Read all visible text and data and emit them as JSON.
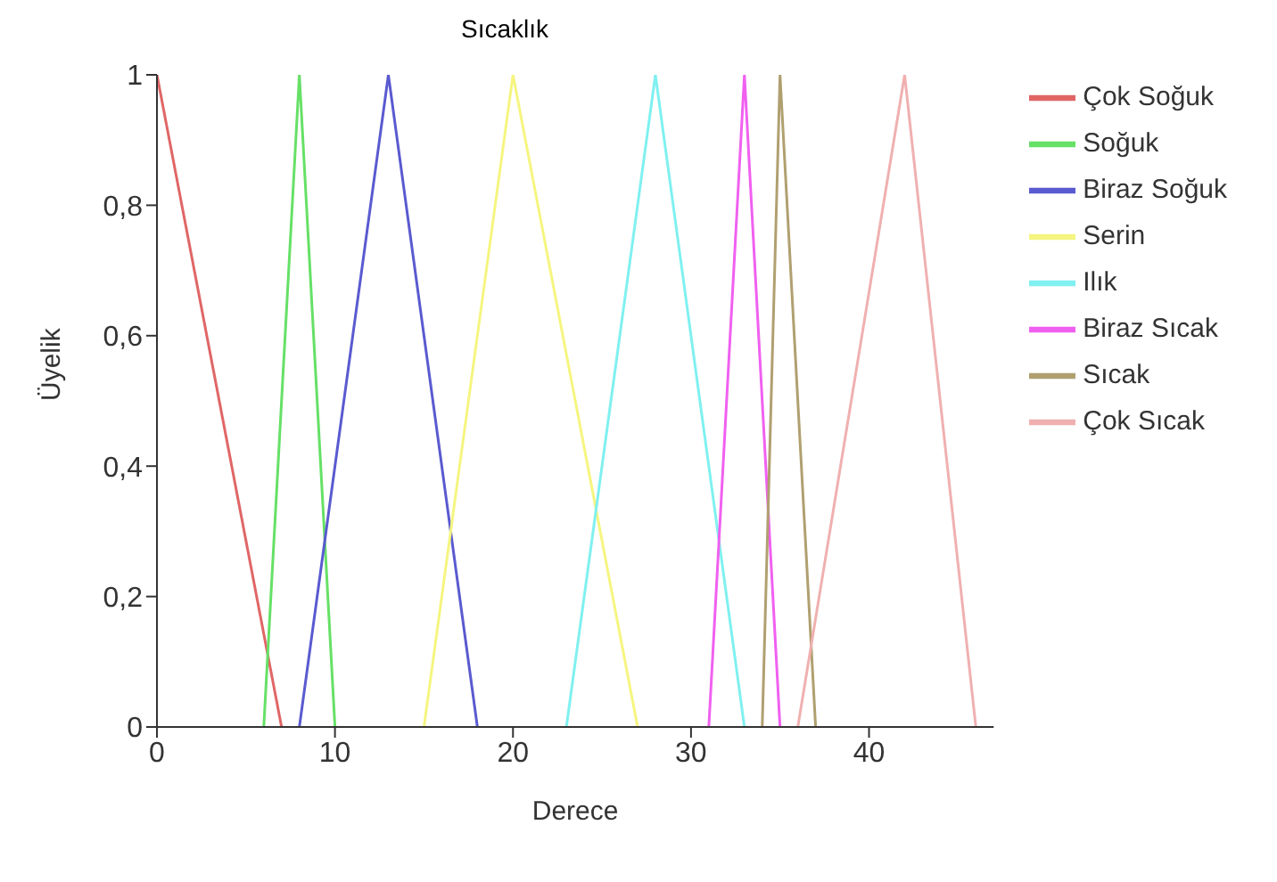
{
  "chart_data": {
    "type": "line",
    "title": "Sıcaklık",
    "xlabel": "Derece",
    "ylabel": "Üyelik",
    "xlim": [
      0,
      47
    ],
    "xticks": [
      0,
      10,
      20,
      30,
      40
    ],
    "ylim": [
      0,
      1
    ],
    "yticks": [
      0,
      {
        "value": 0.2,
        "label": "0,2"
      },
      {
        "value": 0.4,
        "label": "0,4"
      },
      {
        "value": 0.6,
        "label": "0,6"
      },
      {
        "value": 0.8,
        "label": "0,8"
      },
      1
    ],
    "grid": false,
    "legend": "right",
    "marker": "none",
    "line_style": "solid",
    "series": [
      {
        "name": "Çok Soğuk",
        "color": "#e06666",
        "x": [
          0,
          7
        ],
        "values": [
          1,
          0
        ]
      },
      {
        "name": "Soğuk",
        "color": "#66e066",
        "x": [
          6,
          8,
          10
        ],
        "values": [
          0,
          1,
          0
        ]
      },
      {
        "name": "Biraz Soğuk",
        "color": "#5a5ad0",
        "x": [
          8,
          13,
          18
        ],
        "values": [
          0,
          1,
          0
        ]
      },
      {
        "name": "Serin",
        "color": "#f5f580",
        "x": [
          15,
          20,
          27
        ],
        "values": [
          0,
          1,
          0
        ]
      },
      {
        "name": "Ilık",
        "color": "#80f0f0",
        "x": [
          23,
          28,
          33
        ],
        "values": [
          0,
          1,
          0
        ]
      },
      {
        "name": "Biraz Sıcak",
        "color": "#f060f0",
        "x": [
          31,
          33,
          35
        ],
        "values": [
          0,
          1,
          0
        ]
      },
      {
        "name": "Sıcak",
        "color": "#b0a070",
        "x": [
          34,
          35,
          37
        ],
        "values": [
          0,
          1,
          0
        ]
      },
      {
        "name": "Çok Sıcak",
        "color": "#f0b0b0",
        "x": [
          36,
          42,
          46
        ],
        "values": [
          0,
          1,
          0
        ]
      }
    ]
  }
}
